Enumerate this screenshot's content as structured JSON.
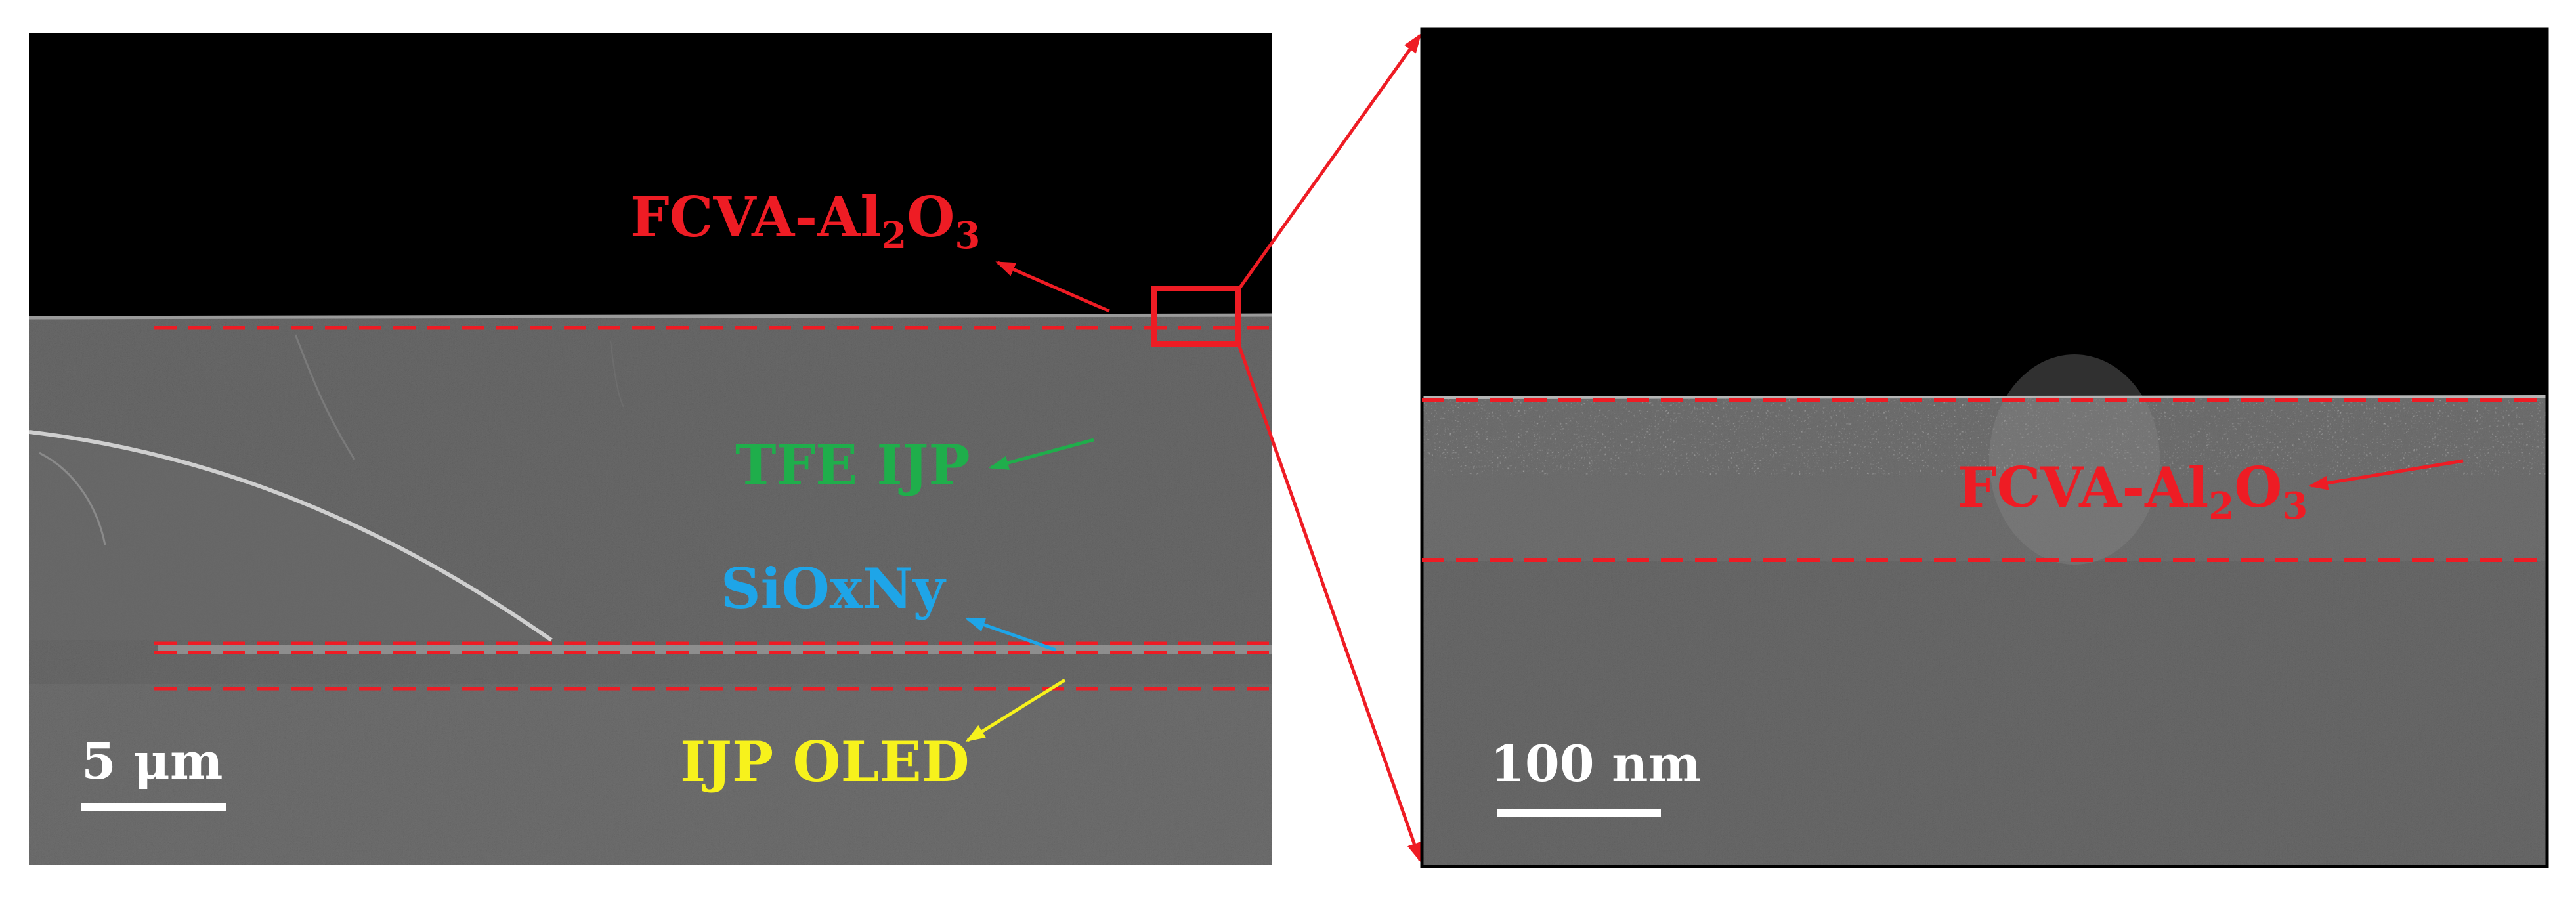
{
  "colors": {
    "red": "#ee1c24",
    "green": "#1fae4b",
    "blue": "#1ea5e8",
    "yellow": "#f7f21c",
    "scale_bar": "#ffffff"
  },
  "left_panel": {
    "labels": {
      "fcva_prefix": "FCVA-Al",
      "fcva_sub2": "2",
      "fcva_o": "O",
      "fcva_sub3": "3",
      "tfe": "TFE IJP",
      "sioxny": "SiOxNy",
      "oled": "IJP OLED"
    },
    "scale_bar_label": "5 μm"
  },
  "right_panel": {
    "labels": {
      "fcva_prefix": "FCVA-Al",
      "fcva_sub2": "2",
      "fcva_o": "O",
      "fcva_sub3": "3"
    },
    "scale_bar_label": "100 nm"
  }
}
